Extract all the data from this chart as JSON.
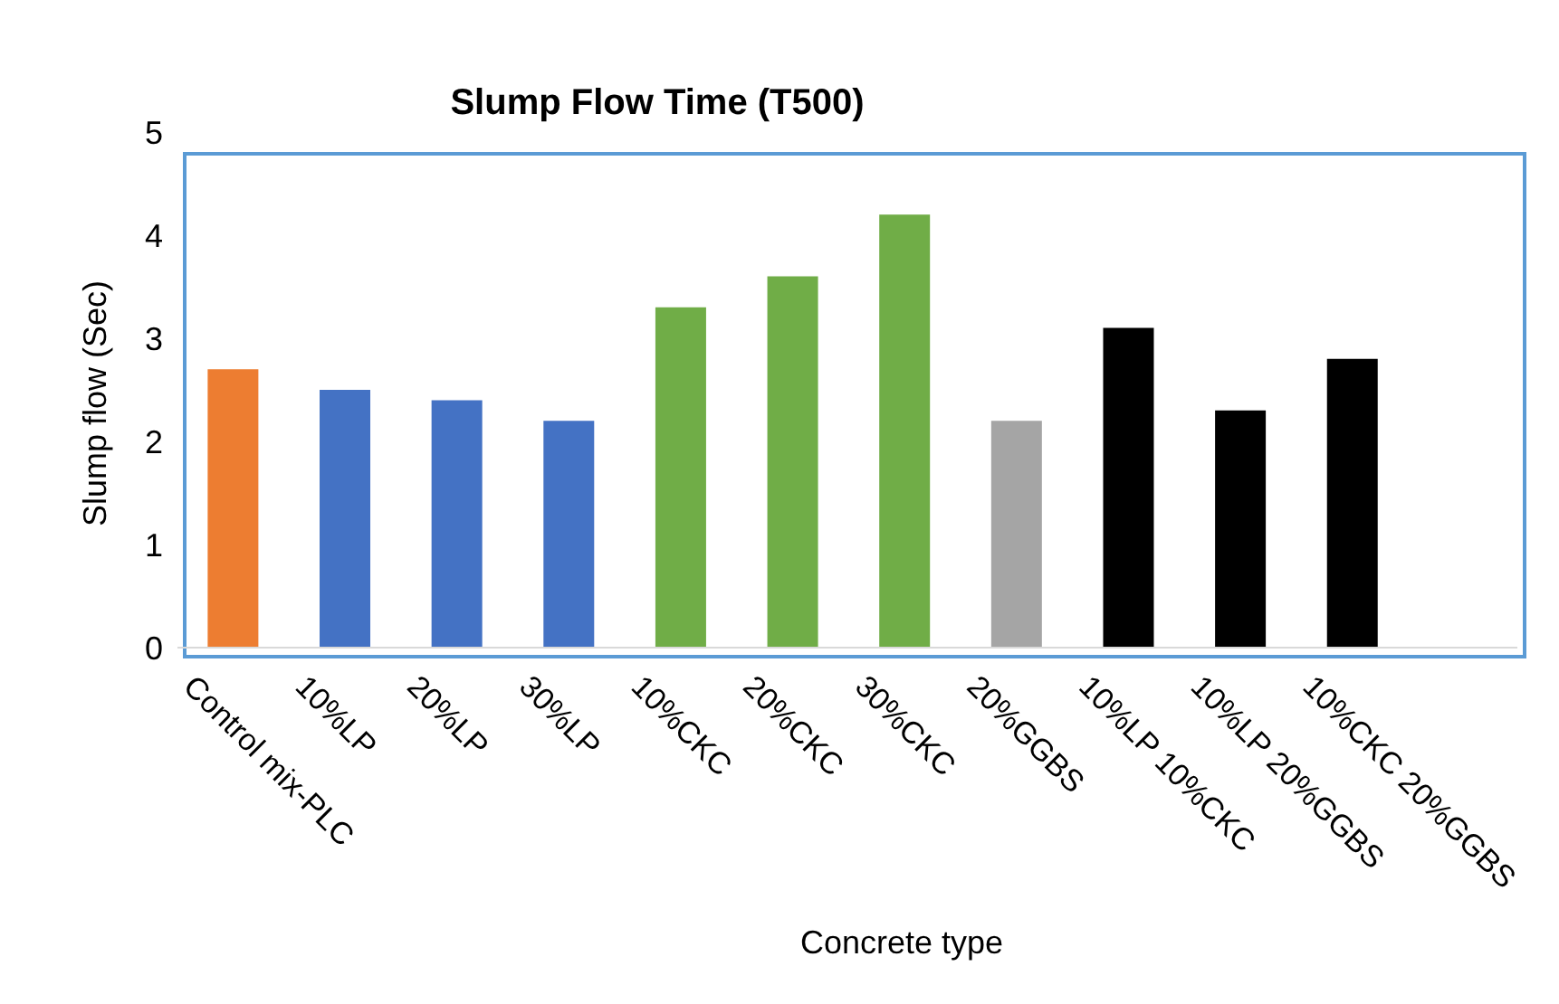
{
  "chart_data": {
    "type": "bar",
    "title": "Slump Flow Time (T500)",
    "xlabel": "Concrete type",
    "ylabel": "Slump flow (Sec)",
    "categories": [
      "Control mix-PLC",
      "10%LP",
      "20%LP",
      "30%LP",
      "10%CKC",
      "20%CKC",
      "30%CKC",
      "20%GGBS",
      "10%LP 10%CKC",
      "10%LP 20%GGBS",
      "10%CKC 20%GGBS"
    ],
    "values": [
      2.7,
      2.5,
      2.4,
      2.2,
      3.3,
      3.6,
      4.2,
      2.2,
      3.1,
      2.3,
      2.8
    ],
    "colors": [
      "#ed7d31",
      "#4472c4",
      "#4472c4",
      "#4472c4",
      "#70ad47",
      "#70ad47",
      "#70ad47",
      "#a5a5a5",
      "#000000",
      "#000000",
      "#000000"
    ],
    "ylim": [
      0,
      5
    ],
    "yticks": [
      0,
      1,
      2,
      3,
      4,
      5
    ],
    "grid": false,
    "legend": false
  }
}
